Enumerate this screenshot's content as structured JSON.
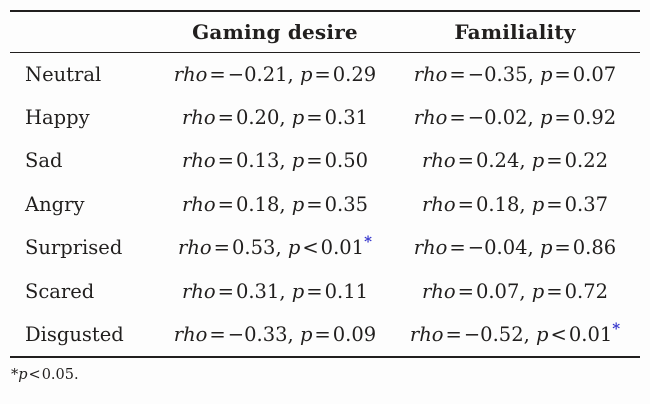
{
  "table": {
    "columns": [
      "Gaming desire",
      "Familiality"
    ],
    "stat_labels": {
      "rho": "rho",
      "p": "p"
    },
    "rows": [
      {
        "label": "Neutral",
        "gaming": {
          "rho_rel": "=",
          "rho": "−0.21",
          "p_rel": "=",
          "p": "0.29",
          "sig": false
        },
        "familiality": {
          "rho_rel": "=",
          "rho": "−0.35",
          "p_rel": "=",
          "p": "0.07",
          "sig": false
        }
      },
      {
        "label": "Happy",
        "gaming": {
          "rho_rel": "=",
          "rho": "0.20",
          "p_rel": "=",
          "p": "0.31",
          "sig": false
        },
        "familiality": {
          "rho_rel": "=",
          "rho": "−0.02",
          "p_rel": "=",
          "p": "0.92",
          "sig": false
        }
      },
      {
        "label": "Sad",
        "gaming": {
          "rho_rel": "=",
          "rho": "0.13",
          "p_rel": "=",
          "p": "0.50",
          "sig": false
        },
        "familiality": {
          "rho_rel": "=",
          "rho": "0.24",
          "p_rel": "=",
          "p": "0.22",
          "sig": false
        }
      },
      {
        "label": "Angry",
        "gaming": {
          "rho_rel": "=",
          "rho": "0.18",
          "p_rel": "=",
          "p": "0.35",
          "sig": false
        },
        "familiality": {
          "rho_rel": "=",
          "rho": "0.18",
          "p_rel": "=",
          "p": "0.37",
          "sig": false
        }
      },
      {
        "label": "Surprised",
        "gaming": {
          "rho_rel": "=",
          "rho": "0.53",
          "p_rel": "<",
          "p": "0.01",
          "sig": true
        },
        "familiality": {
          "rho_rel": "=",
          "rho": "−0.04",
          "p_rel": "=",
          "p": "0.86",
          "sig": false
        }
      },
      {
        "label": "Scared",
        "gaming": {
          "rho_rel": "=",
          "rho": "0.31",
          "p_rel": "=",
          "p": "0.11",
          "sig": false
        },
        "familiality": {
          "rho_rel": "=",
          "rho": "0.07",
          "p_rel": "=",
          "p": "0.72",
          "sig": false
        }
      },
      {
        "label": "Disgusted",
        "gaming": {
          "rho_rel": "=",
          "rho": "−0.33",
          "p_rel": "=",
          "p": "0.09",
          "sig": false
        },
        "familiality": {
          "rho_rel": "=",
          "rho": "−0.52",
          "p_rel": "<",
          "p": "0.01",
          "sig": true
        }
      }
    ]
  },
  "footnote": {
    "star": "*",
    "p_label": "p",
    "rel": "<",
    "value": "0.05."
  },
  "colors": {
    "text": "#211f1e",
    "significance_star": "#3434cc",
    "rule": "#211f1e",
    "background": "#fdfdfd"
  }
}
